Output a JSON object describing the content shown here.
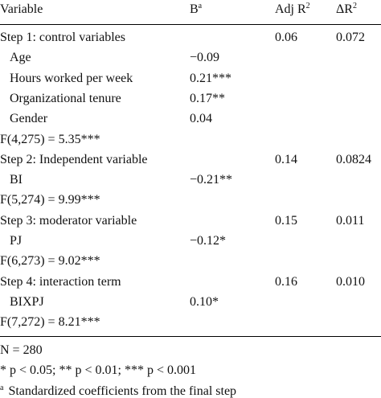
{
  "header": [
    {
      "text": "Variable"
    },
    {
      "text": "B",
      "sup": "a"
    },
    {
      "text": "Adj R",
      "sup": "2"
    },
    {
      "text": "ΔR",
      "sup": "2"
    }
  ],
  "rows": [
    {
      "indent": false,
      "cells": [
        "Step 1: control variables",
        null,
        "0.06",
        "0.072"
      ]
    },
    {
      "indent": true,
      "cells": [
        "Age",
        "−0.09",
        null,
        null
      ]
    },
    {
      "indent": true,
      "cells": [
        "Hours worked per week",
        "0.21***",
        null,
        null
      ]
    },
    {
      "indent": true,
      "cells": [
        "Organizational tenure",
        "0.17**",
        null,
        null
      ]
    },
    {
      "indent": true,
      "cells": [
        "Gender",
        "0.04",
        null,
        null
      ]
    },
    {
      "indent": false,
      "cells": [
        "F(4,275) = 5.35***",
        null,
        null,
        null
      ]
    },
    {
      "indent": false,
      "cells": [
        "Step 2: Independent variable",
        null,
        "0.14",
        "0.0824"
      ]
    },
    {
      "indent": true,
      "cells": [
        "BI",
        "−0.21**",
        null,
        null
      ]
    },
    {
      "indent": false,
      "cells": [
        "F(5,274) = 9.99***",
        null,
        null,
        null
      ]
    },
    {
      "indent": false,
      "cells": [
        "Step 3: moderator variable",
        null,
        "0.15",
        "0.011"
      ]
    },
    {
      "indent": true,
      "cells": [
        "PJ",
        "−0.12*",
        null,
        null
      ]
    },
    {
      "indent": false,
      "cells": [
        "F(6,273) = 9.02***",
        null,
        null,
        null
      ]
    },
    {
      "indent": false,
      "cells": [
        "Step 4: interaction term",
        null,
        "0.16",
        "0.010"
      ]
    },
    {
      "indent": true,
      "cells": [
        "BIXPJ",
        "0.10*",
        null,
        null
      ]
    },
    {
      "indent": false,
      "cells": [
        "F(7,272) = 8.21***",
        null,
        null,
        null
      ]
    }
  ],
  "notes": [
    {
      "text": "N = 280"
    },
    {
      "text": "* p < 0.05; ** p < 0.01; *** p < 0.001"
    },
    {
      "sup": "a",
      "text": "Standardized coefficients from the final step"
    }
  ]
}
